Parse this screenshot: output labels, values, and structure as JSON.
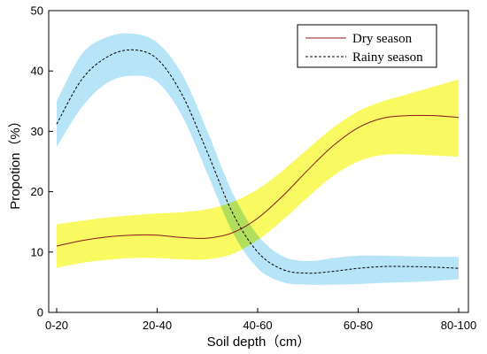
{
  "chart_data": {
    "type": "line",
    "title": "",
    "xlabel": "Soil depth（cm）",
    "ylabel": "Propotion（%）",
    "categories": [
      "0-20",
      "20-40",
      "40-60",
      "60-80",
      "80-100"
    ],
    "ylim": [
      0,
      50
    ],
    "yticks": [
      0,
      10,
      20,
      30,
      40,
      50
    ],
    "legend_position": "top-right",
    "grid": false,
    "x": [
      0,
      0.25,
      0.5,
      0.75,
      1,
      1.25,
      1.5,
      1.75,
      2,
      2.25,
      2.5,
      2.75,
      3,
      3.25,
      3.5,
      3.75,
      4
    ],
    "series": [
      {
        "name": "Dry season",
        "line_style": "solid",
        "color": "#8b1a1a",
        "band_color": "#f7f73a",
        "values": [
          11.0,
          11.9,
          12.5,
          12.8,
          12.8,
          12.4,
          12.3,
          13.2,
          15.6,
          19.3,
          23.6,
          27.6,
          30.6,
          32.2,
          32.6,
          32.6,
          32.3
        ],
        "lower": [
          7.4,
          8.2,
          8.7,
          9.0,
          9.0,
          8.8,
          8.8,
          9.7,
          12.0,
          15.3,
          19.1,
          22.6,
          25.0,
          26.1,
          26.2,
          26.0,
          25.8
        ],
        "upper": [
          14.6,
          15.2,
          15.7,
          16.1,
          16.4,
          16.6,
          17.1,
          18.3,
          20.4,
          23.5,
          27.1,
          30.6,
          33.3,
          35.0,
          36.2,
          37.4,
          38.6
        ]
      },
      {
        "name": "Rainy season",
        "line_style": "dashed",
        "color": "#000000",
        "band_color": "#b3e3f7",
        "values": [
          31.2,
          38.6,
          42.3,
          43.5,
          42.0,
          36.0,
          26.5,
          16.5,
          10.0,
          7.1,
          6.5,
          6.8,
          7.3,
          7.6,
          7.6,
          7.5,
          7.3
        ],
        "lower": [
          27.4,
          34.0,
          38.0,
          39.2,
          38.2,
          32.5,
          23.0,
          13.3,
          7.3,
          5.0,
          4.6,
          4.6,
          4.7,
          4.9,
          5.0,
          5.2,
          5.5
        ],
        "upper": [
          35.0,
          42.8,
          45.6,
          46.2,
          44.7,
          39.4,
          30.0,
          19.8,
          12.8,
          9.3,
          8.5,
          9.0,
          9.4,
          9.4,
          9.3,
          9.2,
          9.2
        ]
      }
    ]
  }
}
